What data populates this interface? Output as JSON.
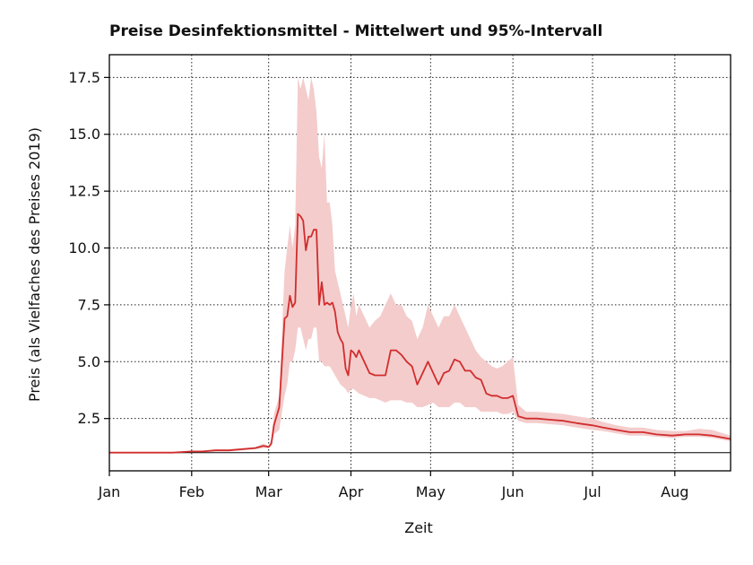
{
  "chart_data": {
    "type": "line",
    "title": "Preise Desinfektionsmittel - Mittelwert und 95%-Intervall",
    "xlabel": "Zeit",
    "ylabel": "Preis (als Vielfaches des Preises 2019)",
    "x_tick_labels": [
      "Jan",
      "Feb",
      "Mar",
      "Apr",
      "May",
      "Jun",
      "Jul",
      "Aug"
    ],
    "x_tick_dates": [
      "2020-01-01",
      "2020-02-01",
      "2020-03-01",
      "2020-04-01",
      "2020-05-01",
      "2020-06-01",
      "2020-07-01",
      "2020-08-01"
    ],
    "y_ticks": [
      2.5,
      5.0,
      7.5,
      10.0,
      12.5,
      15.0,
      17.5
    ],
    "y_tick_labels": [
      "2.5",
      "5.0",
      "7.5",
      "10.0",
      "12.5",
      "15.0",
      "17.5"
    ],
    "xlim": [
      "2020-01-01",
      "2020-08-22"
    ],
    "ylim": [
      0.2,
      18.5
    ],
    "grid": true,
    "reference_line": 1.0,
    "colors": {
      "line": "#d12d2d",
      "band": "#f4cccc",
      "reference": "#000000"
    },
    "series": [
      {
        "x": [
          "2020-01-01",
          "2020-01-10",
          "2020-01-20",
          "2020-01-25",
          "2020-02-01",
          "2020-02-05",
          "2020-02-10",
          "2020-02-15",
          "2020-02-20",
          "2020-02-25",
          "2020-02-28",
          "2020-03-01",
          "2020-03-02",
          "2020-03-03",
          "2020-03-05",
          "2020-03-07",
          "2020-03-08",
          "2020-03-09",
          "2020-03-10",
          "2020-03-11",
          "2020-03-12",
          "2020-03-13",
          "2020-03-14",
          "2020-03-15",
          "2020-03-16",
          "2020-03-17",
          "2020-03-18",
          "2020-03-19",
          "2020-03-20",
          "2020-03-21",
          "2020-03-22",
          "2020-03-23",
          "2020-03-24",
          "2020-03-25",
          "2020-03-26",
          "2020-03-27",
          "2020-03-28",
          "2020-03-29",
          "2020-03-30",
          "2020-03-31",
          "2020-04-01",
          "2020-04-02",
          "2020-04-03",
          "2020-04-04",
          "2020-04-06",
          "2020-04-08",
          "2020-04-10",
          "2020-04-12",
          "2020-04-14",
          "2020-04-16",
          "2020-04-18",
          "2020-04-20",
          "2020-04-22",
          "2020-04-24",
          "2020-04-26",
          "2020-04-28",
          "2020-04-30",
          "2020-05-02",
          "2020-05-04",
          "2020-05-06",
          "2020-05-08",
          "2020-05-10",
          "2020-05-12",
          "2020-05-14",
          "2020-05-16",
          "2020-05-18",
          "2020-05-20",
          "2020-05-22",
          "2020-05-24",
          "2020-05-26",
          "2020-05-28",
          "2020-05-30",
          "2020-06-01",
          "2020-06-03",
          "2020-06-06",
          "2020-06-10",
          "2020-06-15",
          "2020-06-20",
          "2020-06-25",
          "2020-07-01",
          "2020-07-05",
          "2020-07-10",
          "2020-07-15",
          "2020-07-20",
          "2020-07-25",
          "2020-07-31",
          "2020-08-05",
          "2020-08-10",
          "2020-08-15",
          "2020-08-22"
        ],
        "mean": [
          1.0,
          1.0,
          1.0,
          1.0,
          1.05,
          1.05,
          1.1,
          1.1,
          1.15,
          1.2,
          1.3,
          1.25,
          1.4,
          2.2,
          3.0,
          6.9,
          7.0,
          7.9,
          7.4,
          7.6,
          11.5,
          11.4,
          11.2,
          9.9,
          10.5,
          10.5,
          10.8,
          10.8,
          7.5,
          8.5,
          7.5,
          7.6,
          7.5,
          7.6,
          7.2,
          6.3,
          6.0,
          5.8,
          4.7,
          4.4,
          5.5,
          5.4,
          5.2,
          5.5,
          5.0,
          4.5,
          4.4,
          4.4,
          4.4,
          5.5,
          5.5,
          5.3,
          5.0,
          4.8,
          4.0,
          4.5,
          5.0,
          4.5,
          4.0,
          4.5,
          4.6,
          5.1,
          5.0,
          4.6,
          4.6,
          4.3,
          4.2,
          3.6,
          3.5,
          3.5,
          3.4,
          3.4,
          3.5,
          2.6,
          2.5,
          2.5,
          2.45,
          2.4,
          2.3,
          2.2,
          2.1,
          2.0,
          1.9,
          1.9,
          1.8,
          1.75,
          1.8,
          1.8,
          1.75,
          1.6
        ],
        "lower": [
          1.0,
          1.0,
          1.0,
          1.0,
          1.02,
          1.02,
          1.05,
          1.05,
          1.1,
          1.15,
          1.2,
          1.2,
          1.3,
          1.8,
          2.0,
          3.5,
          4.0,
          5.0,
          5.0,
          5.5,
          6.5,
          6.5,
          6.0,
          5.5,
          6.0,
          6.0,
          6.5,
          6.5,
          5.0,
          5.0,
          4.8,
          4.8,
          4.8,
          4.6,
          4.4,
          4.2,
          4.0,
          3.9,
          3.8,
          3.6,
          3.8,
          3.8,
          3.7,
          3.6,
          3.5,
          3.4,
          3.4,
          3.3,
          3.2,
          3.3,
          3.3,
          3.3,
          3.2,
          3.2,
          3.0,
          3.0,
          3.1,
          3.2,
          3.0,
          3.0,
          3.0,
          3.2,
          3.2,
          3.0,
          3.0,
          3.0,
          2.8,
          2.8,
          2.8,
          2.8,
          2.7,
          2.7,
          2.8,
          2.4,
          2.3,
          2.3,
          2.25,
          2.2,
          2.1,
          2.0,
          1.95,
          1.85,
          1.75,
          1.75,
          1.7,
          1.65,
          1.7,
          1.7,
          1.65,
          1.5
        ],
        "upper": [
          1.0,
          1.0,
          1.0,
          1.0,
          1.08,
          1.08,
          1.15,
          1.15,
          1.2,
          1.25,
          1.4,
          1.3,
          1.6,
          2.7,
          3.5,
          9.0,
          10.0,
          11.0,
          10.0,
          11.0,
          17.5,
          17.0,
          17.5,
          17.0,
          16.5,
          17.5,
          17.0,
          16.0,
          14.0,
          13.5,
          15.0,
          12.0,
          12.0,
          11.0,
          9.0,
          8.5,
          8.0,
          7.5,
          7.0,
          6.5,
          7.5,
          8.0,
          7.0,
          7.5,
          7.0,
          6.5,
          6.8,
          7.0,
          7.5,
          8.0,
          7.5,
          7.5,
          7.0,
          6.8,
          6.0,
          6.5,
          7.5,
          7.0,
          6.5,
          7.0,
          7.0,
          7.5,
          7.0,
          6.5,
          6.0,
          5.5,
          5.2,
          5.0,
          4.8,
          4.7,
          4.8,
          5.0,
          5.2,
          3.1,
          2.8,
          2.8,
          2.75,
          2.7,
          2.6,
          2.5,
          2.35,
          2.2,
          2.1,
          2.1,
          2.0,
          1.95,
          1.95,
          2.05,
          2.0,
          1.75
        ]
      }
    ]
  }
}
